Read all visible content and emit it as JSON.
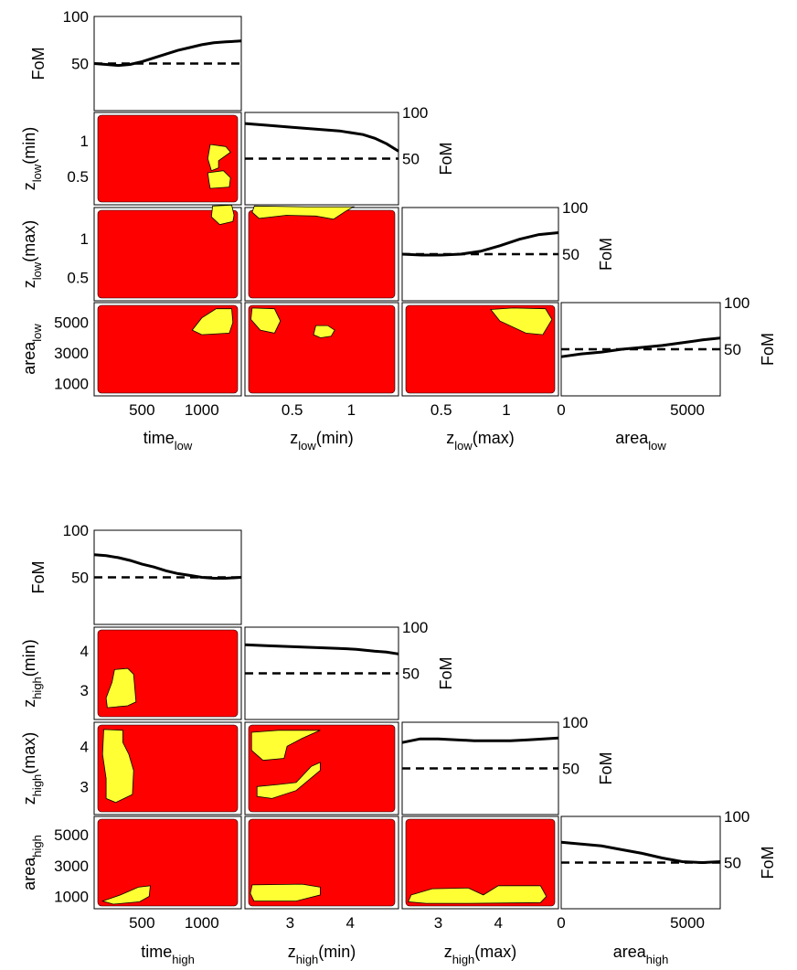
{
  "colors": {
    "excluded_fill": "#ff0000",
    "allowed_fill": "#ffff33",
    "curve": "#000000",
    "reference_line": "#000000"
  },
  "chart_data": [
    {
      "type": "corner-plot",
      "params": [
        {
          "label": "time",
          "sub": "low",
          "suffix": "",
          "ticks": [
            500,
            1000
          ],
          "tick_labels": [
            "500",
            "1000"
          ],
          "range": [
            100,
            1330
          ]
        },
        {
          "label": "z",
          "sub": "low",
          "suffix": "(min)",
          "ticks": [
            0.5,
            1
          ],
          "tick_labels": [
            "0.5",
            "1"
          ],
          "range": [
            0.1,
            1.4
          ]
        },
        {
          "label": "z",
          "sub": "low",
          "suffix": "(max)",
          "ticks": [
            0.5,
            1
          ],
          "tick_labels": [
            "0.5",
            "1"
          ],
          "range": [
            0.2,
            1.4
          ]
        },
        {
          "label": "area",
          "sub": "low",
          "suffix": "",
          "ticks": [
            0,
            5000
          ],
          "tick_labels": [
            "0",
            "5000"
          ],
          "range": [
            0,
            6300
          ]
        }
      ],
      "row_params": [
        {
          "label": "z",
          "sub": "low",
          "suffix": "(min)",
          "ticks": [
            0.5,
            1
          ],
          "tick_labels": [
            "0.5",
            "1"
          ],
          "range": [
            0.1,
            1.4
          ]
        },
        {
          "label": "z",
          "sub": "low",
          "suffix": "(max)",
          "ticks": [
            0.5,
            1
          ],
          "tick_labels": [
            "0.5",
            "1"
          ],
          "range": [
            0.2,
            1.4
          ]
        },
        {
          "label": "area",
          "sub": "low",
          "suffix": "",
          "ticks": [
            1000,
            3000,
            5000
          ],
          "tick_labels": [
            "1000",
            "3000",
            "5000"
          ],
          "range": [
            200,
            6300
          ]
        }
      ],
      "fom": {
        "label": "FoM",
        "ylim": [
          0,
          100
        ],
        "ticks": [
          50,
          100
        ],
        "tick_labels": [
          "50",
          "100"
        ],
        "reference": 50,
        "curves": [
          {
            "x": [
              100,
              200,
              300,
              400,
              500,
              600,
              700,
              800,
              900,
              1000,
              1100,
              1200,
              1330
            ],
            "y": [
              50,
              49,
              48,
              49,
              52,
              56,
              60,
              64,
              67,
              70,
              72,
              73,
              74
            ]
          },
          {
            "x": [
              0.1,
              0.3,
              0.5,
              0.7,
              0.9,
              1.1,
              1.2,
              1.3,
              1.4
            ],
            "y": [
              88,
              86,
              84,
              82,
              80,
              76,
              72,
              66,
              58
            ]
          },
          {
            "x": [
              0.2,
              0.35,
              0.5,
              0.65,
              0.8,
              0.95,
              1.1,
              1.25,
              1.4
            ],
            "y": [
              50,
              49,
              49,
              50,
              53,
              59,
              66,
              71,
              73
            ]
          },
          {
            "x": [
              0,
              800,
              1600,
              2400,
              3200,
              4000,
              4800,
              5600,
              6300
            ],
            "y": [
              42,
              45,
              47,
              50,
              52,
              54,
              57,
              60,
              62
            ]
          }
        ]
      },
      "allowed_regions": [
        {
          "col": 0,
          "row": 0,
          "polys": [
            [
              [
                1070,
                0.95
              ],
              [
                1200,
                0.92
              ],
              [
                1240,
                0.84
              ],
              [
                1140,
                0.72
              ],
              [
                1140,
                0.62
              ],
              [
                1080,
                0.58
              ],
              [
                1050,
                0.75
              ]
            ],
            [
              [
                1050,
                0.55
              ],
              [
                1180,
                0.58
              ],
              [
                1240,
                0.48
              ],
              [
                1230,
                0.35
              ],
              [
                1070,
                0.33
              ],
              [
                1060,
                0.42
              ]
            ]
          ]
        },
        {
          "col": 0,
          "row": 1,
          "polys": [
            [
              [
                1090,
                1.42
              ],
              [
                1250,
                1.43
              ],
              [
                1270,
                1.3
              ],
              [
                1260,
                1.22
              ],
              [
                1150,
                1.18
              ],
              [
                1080,
                1.28
              ]
            ]
          ]
        },
        {
          "col": 1,
          "row": 1,
          "polys": [
            [
              [
                0.18,
                1.42
              ],
              [
                0.62,
                1.41
              ],
              [
                1.02,
                1.41
              ],
              [
                0.95,
                1.35
              ],
              [
                0.85,
                1.25
              ],
              [
                0.7,
                1.29
              ],
              [
                0.45,
                1.3
              ],
              [
                0.22,
                1.26
              ],
              [
                0.16,
                1.34
              ]
            ]
          ]
        },
        {
          "col": 0,
          "row": 2,
          "polys": [
            [
              [
                920,
                4500
              ],
              [
                1000,
                5300
              ],
              [
                1120,
                5900
              ],
              [
                1250,
                5900
              ],
              [
                1260,
                5000
              ],
              [
                1230,
                4300
              ],
              [
                1000,
                4200
              ]
            ]
          ]
        },
        {
          "col": 1,
          "row": 2,
          "polys": [
            [
              [
                0.16,
                5950
              ],
              [
                0.35,
                5900
              ],
              [
                0.4,
                5100
              ],
              [
                0.35,
                4300
              ],
              [
                0.23,
                4500
              ],
              [
                0.15,
                5200
              ]
            ],
            [
              [
                0.68,
                4200
              ],
              [
                0.7,
                4800
              ],
              [
                0.8,
                4800
              ],
              [
                0.86,
                4500
              ],
              [
                0.83,
                4100
              ],
              [
                0.74,
                4000
              ]
            ]
          ]
        },
        {
          "col": 2,
          "row": 2,
          "polys": [
            [
              [
                0.88,
                5850
              ],
              [
                1.05,
                5950
              ],
              [
                1.3,
                5900
              ],
              [
                1.35,
                5200
              ],
              [
                1.28,
                4200
              ],
              [
                1.15,
                4300
              ],
              [
                0.95,
                5100
              ]
            ]
          ]
        }
      ]
    },
    {
      "type": "corner-plot",
      "params": [
        {
          "label": "time",
          "sub": "high",
          "suffix": "",
          "ticks": [
            500,
            1000
          ],
          "tick_labels": [
            "500",
            "1000"
          ],
          "range": [
            100,
            1330
          ]
        },
        {
          "label": "z",
          "sub": "high",
          "suffix": "(min)",
          "ticks": [
            3,
            4
          ],
          "tick_labels": [
            "3",
            "4"
          ],
          "range": [
            2.25,
            4.8
          ]
        },
        {
          "label": "z",
          "sub": "high",
          "suffix": "(max)",
          "ticks": [
            3,
            4
          ],
          "tick_labels": [
            "3",
            "4"
          ],
          "range": [
            2.4,
            5.0
          ]
        },
        {
          "label": "area",
          "sub": "high",
          "suffix": "",
          "ticks": [
            0,
            5000
          ],
          "tick_labels": [
            "0",
            "5000"
          ],
          "range": [
            0,
            6300
          ]
        }
      ],
      "row_params": [
        {
          "label": "z",
          "sub": "high",
          "suffix": "(min)",
          "ticks": [
            3,
            4
          ],
          "tick_labels": [
            "3",
            "4"
          ],
          "range": [
            2.25,
            4.6
          ]
        },
        {
          "label": "z",
          "sub": "high",
          "suffix": "(max)",
          "ticks": [
            3,
            4
          ],
          "tick_labels": [
            "3",
            "4"
          ],
          "range": [
            2.3,
            4.6
          ]
        },
        {
          "label": "area",
          "sub": "high",
          "suffix": "",
          "ticks": [
            1000,
            3000,
            5000
          ],
          "tick_labels": [
            "1000",
            "3000",
            "5000"
          ],
          "range": [
            200,
            6200
          ]
        }
      ],
      "fom": {
        "label": "FoM",
        "ylim": [
          0,
          100
        ],
        "ticks": [
          50,
          100
        ],
        "tick_labels": [
          "50",
          "100"
        ],
        "reference": 50,
        "curves": [
          {
            "x": [
              100,
              200,
              300,
              400,
              500,
              600,
              700,
              800,
              900,
              1000,
              1100,
              1200,
              1330
            ],
            "y": [
              74,
              73,
              71,
              68,
              64,
              61,
              57,
              54,
              52,
              50,
              49,
              49,
              50
            ]
          },
          {
            "x": [
              2.25,
              2.6,
              3.0,
              3.4,
              3.8,
              4.1,
              4.4,
              4.6,
              4.8
            ],
            "y": [
              81,
              80,
              79,
              78,
              77,
              76,
              74,
              73,
              71
            ]
          },
          {
            "x": [
              2.4,
              2.7,
              3.0,
              3.3,
              3.6,
              3.9,
              4.2,
              4.5,
              5.0
            ],
            "y": [
              78,
              82,
              82,
              81,
              80,
              80,
              80,
              81,
              83
            ]
          },
          {
            "x": [
              0,
              800,
              1600,
              2400,
              3200,
              4000,
              4800,
              5600,
              6300
            ],
            "y": [
              72,
              70,
              68,
              64,
              60,
              55,
              51,
              50,
              51
            ]
          }
        ]
      },
      "allowed_regions": [
        {
          "col": 0,
          "row": 0,
          "polys": [
            [
              [
                270,
                3.52
              ],
              [
                380,
                3.55
              ],
              [
                430,
                3.4
              ],
              [
                450,
                2.7
              ],
              [
                380,
                2.6
              ],
              [
                210,
                2.55
              ],
              [
                200,
                2.8
              ],
              [
                250,
                3.2
              ]
            ]
          ]
        },
        {
          "col": 0,
          "row": 1,
          "polys": [
            [
              [
                180,
                4.42
              ],
              [
                340,
                4.4
              ],
              [
                340,
                4.1
              ],
              [
                390,
                3.8
              ],
              [
                430,
                3.4
              ],
              [
                420,
                2.8
              ],
              [
                280,
                2.6
              ],
              [
                200,
                2.7
              ],
              [
                200,
                3.2
              ],
              [
                170,
                3.8
              ]
            ]
          ]
        },
        {
          "col": 1,
          "row": 1,
          "polys": [
            [
              [
                2.36,
                4.35
              ],
              [
                2.8,
                4.4
              ],
              [
                3.5,
                4.4
              ],
              [
                3.2,
                4.2
              ],
              [
                2.95,
                4.0
              ],
              [
                2.9,
                3.7
              ],
              [
                2.55,
                3.65
              ],
              [
                2.36,
                3.9
              ]
            ],
            [
              [
                2.45,
                3.0
              ],
              [
                2.8,
                3.05
              ],
              [
                3.1,
                3.1
              ],
              [
                3.35,
                3.5
              ],
              [
                3.5,
                3.6
              ],
              [
                3.5,
                3.4
              ],
              [
                3.1,
                2.9
              ],
              [
                2.7,
                2.7
              ],
              [
                2.45,
                2.75
              ]
            ]
          ]
        },
        {
          "col": 0,
          "row": 2,
          "polys": [
            [
              [
                170,
                700
              ],
              [
                320,
                1100
              ],
              [
                470,
                1600
              ],
              [
                570,
                1700
              ],
              [
                560,
                1000
              ],
              [
                480,
                650
              ],
              [
                260,
                500
              ]
            ]
          ]
        },
        {
          "col": 1,
          "row": 2,
          "polys": [
            [
              [
                2.37,
                1750
              ],
              [
                3.2,
                1800
              ],
              [
                3.5,
                1600
              ],
              [
                3.5,
                1100
              ],
              [
                3.1,
                700
              ],
              [
                2.4,
                700
              ],
              [
                2.34,
                1200
              ]
            ]
          ]
        },
        {
          "col": 2,
          "row": 2,
          "polys": [
            [
              [
                2.55,
                1100
              ],
              [
                2.9,
                1500
              ],
              [
                3.5,
                1550
              ],
              [
                3.75,
                1100
              ],
              [
                4.0,
                1700
              ],
              [
                4.7,
                1700
              ],
              [
                4.8,
                1000
              ],
              [
                4.7,
                600
              ],
              [
                3.5,
                550
              ],
              [
                2.8,
                550
              ],
              [
                2.5,
                650
              ]
            ]
          ]
        }
      ]
    }
  ]
}
